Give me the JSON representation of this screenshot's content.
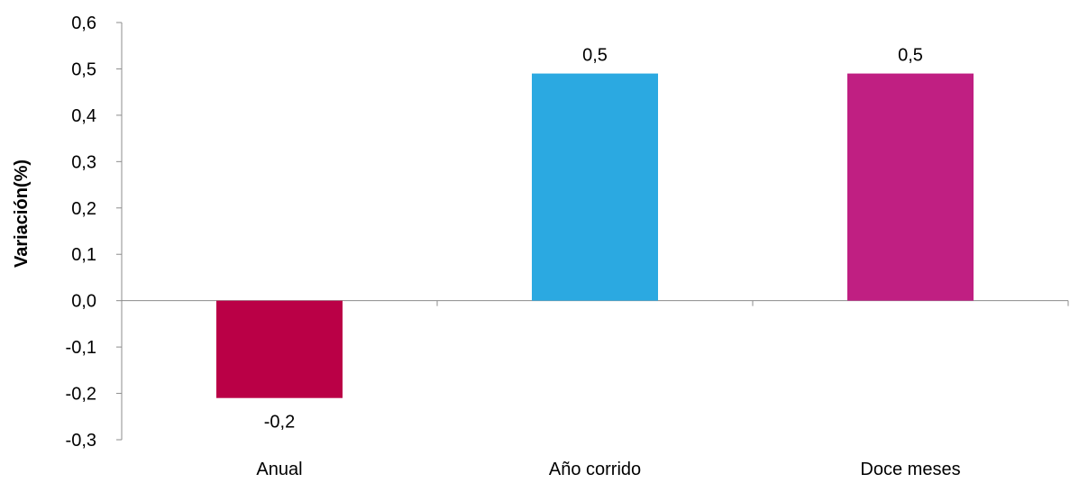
{
  "chart_data": {
    "type": "bar",
    "title": "",
    "xlabel": "",
    "ylabel": "Variación(%)",
    "ylim": [
      -0.3,
      0.6
    ],
    "yticks": [
      "0,6",
      "0,5",
      "0,4",
      "0,3",
      "0,2",
      "0,1",
      "0,0",
      "-0,1",
      "-0,2",
      "-0,3"
    ],
    "ytick_values": [
      0.6,
      0.5,
      0.4,
      0.3,
      0.2,
      0.1,
      0.0,
      -0.1,
      -0.2,
      -0.3
    ],
    "categories": [
      "Anual",
      "Año corrido",
      "Doce meses"
    ],
    "values": [
      -0.21,
      0.49,
      0.49
    ],
    "data_labels": [
      "-0,2",
      "0,5",
      "0,5"
    ],
    "colors": [
      "#BA0046",
      "#2BA9E1",
      "#C01F82"
    ],
    "grid": false,
    "legend": "none"
  }
}
